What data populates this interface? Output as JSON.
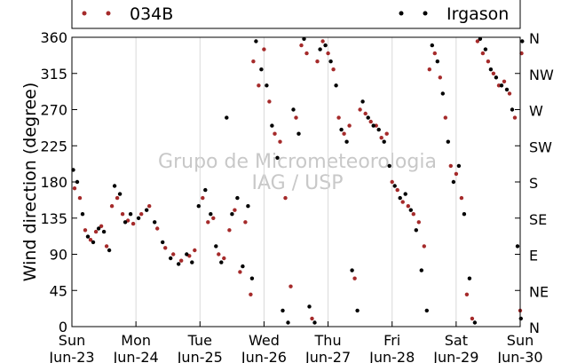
{
  "chart_data": {
    "type": "scatter",
    "ylabel": "Wind direction (degree)",
    "ylim": [
      0,
      360
    ],
    "yticks": [
      0,
      45,
      90,
      135,
      180,
      225,
      270,
      315,
      360
    ],
    "compass_ticks": [
      {
        "value": 0,
        "label": "N"
      },
      {
        "value": 45,
        "label": "NE"
      },
      {
        "value": 90,
        "label": "E"
      },
      {
        "value": 135,
        "label": "SE"
      },
      {
        "value": 180,
        "label": "S"
      },
      {
        "value": 225,
        "label": "SW"
      },
      {
        "value": 270,
        "label": "W"
      },
      {
        "value": 315,
        "label": "NW"
      },
      {
        "value": 360,
        "label": "N"
      }
    ],
    "xlim": [
      "2013-06-23",
      "2013-06-30"
    ],
    "xticks": [
      {
        "day": "Sun",
        "date": "Jun-23"
      },
      {
        "day": "Mon",
        "date": "Jun-24"
      },
      {
        "day": "Tue",
        "date": "Jun-25"
      },
      {
        "day": "Wed",
        "date": "Jun-26"
      },
      {
        "day": "Thu",
        "date": "Jun-27"
      },
      {
        "day": "Fri",
        "date": "Jun-28"
      },
      {
        "day": "Sat",
        "date": "Jun-29"
      },
      {
        "day": "Sun",
        "date": "Jun-30"
      }
    ],
    "grid": "vertical",
    "legend_placement": "top",
    "watermark": [
      "Grupo de Micrometeorologia",
      "IAG / USP"
    ],
    "series": [
      {
        "name": "034B",
        "color": "#a52a2a",
        "points": [
          [
            "2013-06-23 01:00",
            172
          ],
          [
            "2013-06-23 03:00",
            160
          ],
          [
            "2013-06-23 05:00",
            120
          ],
          [
            "2013-06-23 07:00",
            108
          ],
          [
            "2013-06-23 09:00",
            118
          ],
          [
            "2013-06-23 11:00",
            125
          ],
          [
            "2013-06-23 13:00",
            100
          ],
          [
            "2013-06-23 15:00",
            150
          ],
          [
            "2013-06-23 17:00",
            160
          ],
          [
            "2013-06-23 19:00",
            140
          ],
          [
            "2013-06-23 21:00",
            132
          ],
          [
            "2013-06-23 23:00",
            128
          ],
          [
            "2013-06-24 02:00",
            140
          ],
          [
            "2013-06-24 05:00",
            150
          ],
          [
            "2013-06-24 08:00",
            122
          ],
          [
            "2013-06-24 11:00",
            98
          ],
          [
            "2013-06-24 14:00",
            90
          ],
          [
            "2013-06-24 17:00",
            82
          ],
          [
            "2013-06-24 20:00",
            88
          ],
          [
            "2013-06-24 22:00",
            95
          ],
          [
            "2013-06-25 01:00",
            160
          ],
          [
            "2013-06-25 03:00",
            130
          ],
          [
            "2013-06-25 05:00",
            135
          ],
          [
            "2013-06-25 07:00",
            90
          ],
          [
            "2013-06-25 09:00",
            85
          ],
          [
            "2013-06-25 11:00",
            120
          ],
          [
            "2013-06-25 13:00",
            145
          ],
          [
            "2013-06-25 15:00",
            68
          ],
          [
            "2013-06-25 17:00",
            130
          ],
          [
            "2013-06-25 19:00",
            40
          ],
          [
            "2013-06-25 20:00",
            330
          ],
          [
            "2013-06-25 22:00",
            300
          ],
          [
            "2013-06-26 00:00",
            345
          ],
          [
            "2013-06-26 02:00",
            280
          ],
          [
            "2013-06-26 04:00",
            240
          ],
          [
            "2013-06-26 06:00",
            230
          ],
          [
            "2013-06-26 08:00",
            160
          ],
          [
            "2013-06-26 10:00",
            50
          ],
          [
            "2013-06-26 12:00",
            260
          ],
          [
            "2013-06-26 14:00",
            350
          ],
          [
            "2013-06-26 16:00",
            340
          ],
          [
            "2013-06-26 18:00",
            10
          ],
          [
            "2013-06-26 20:00",
            330
          ],
          [
            "2013-06-26 22:00",
            355
          ],
          [
            "2013-06-27 00:00",
            340
          ],
          [
            "2013-06-27 02:00",
            320
          ],
          [
            "2013-06-27 04:00",
            260
          ],
          [
            "2013-06-27 06:00",
            240
          ],
          [
            "2013-06-27 08:00",
            250
          ],
          [
            "2013-06-27 10:00",
            60
          ],
          [
            "2013-06-27 12:00",
            270
          ],
          [
            "2013-06-27 14:00",
            265
          ],
          [
            "2013-06-27 16:00",
            255
          ],
          [
            "2013-06-27 18:00",
            250
          ],
          [
            "2013-06-27 20:00",
            235
          ],
          [
            "2013-06-27 22:00",
            240
          ],
          [
            "2013-06-28 00:00",
            180
          ],
          [
            "2013-06-28 02:00",
            170
          ],
          [
            "2013-06-28 04:00",
            155
          ],
          [
            "2013-06-28 06:00",
            150
          ],
          [
            "2013-06-28 08:00",
            140
          ],
          [
            "2013-06-28 10:00",
            130
          ],
          [
            "2013-06-28 12:00",
            100
          ],
          [
            "2013-06-28 14:00",
            320
          ],
          [
            "2013-06-28 16:00",
            340
          ],
          [
            "2013-06-28 18:00",
            310
          ],
          [
            "2013-06-28 20:00",
            260
          ],
          [
            "2013-06-28 22:00",
            200
          ],
          [
            "2013-06-29 00:00",
            190
          ],
          [
            "2013-06-29 02:00",
            160
          ],
          [
            "2013-06-29 04:00",
            40
          ],
          [
            "2013-06-29 06:00",
            10
          ],
          [
            "2013-06-29 08:00",
            355
          ],
          [
            "2013-06-29 10:00",
            340
          ],
          [
            "2013-06-29 12:00",
            330
          ],
          [
            "2013-06-29 14:00",
            315
          ],
          [
            "2013-06-29 16:00",
            300
          ],
          [
            "2013-06-29 18:00",
            305
          ],
          [
            "2013-06-29 20:00",
            290
          ],
          [
            "2013-06-29 22:00",
            260
          ],
          [
            "2013-06-30 00:00",
            20
          ],
          [
            "2013-06-30 00:30",
            340
          ]
        ]
      },
      {
        "name": "Irgason",
        "color": "#000000",
        "points": [
          [
            "2013-06-23 00:30",
            195
          ],
          [
            "2013-06-23 02:00",
            180
          ],
          [
            "2013-06-23 04:00",
            140
          ],
          [
            "2013-06-23 06:00",
            112
          ],
          [
            "2013-06-23 08:00",
            105
          ],
          [
            "2013-06-23 10:00",
            122
          ],
          [
            "2013-06-23 12:00",
            118
          ],
          [
            "2013-06-23 14:00",
            95
          ],
          [
            "2013-06-23 16:00",
            175
          ],
          [
            "2013-06-23 18:00",
            165
          ],
          [
            "2013-06-23 20:00",
            130
          ],
          [
            "2013-06-23 22:00",
            140
          ],
          [
            "2013-06-24 01:00",
            135
          ],
          [
            "2013-06-24 04:00",
            145
          ],
          [
            "2013-06-24 07:00",
            130
          ],
          [
            "2013-06-24 10:00",
            105
          ],
          [
            "2013-06-24 13:00",
            85
          ],
          [
            "2013-06-24 16:00",
            78
          ],
          [
            "2013-06-24 19:00",
            90
          ],
          [
            "2013-06-24 21:00",
            80
          ],
          [
            "2013-06-24 23:30",
            150
          ],
          [
            "2013-06-25 02:00",
            170
          ],
          [
            "2013-06-25 04:00",
            140
          ],
          [
            "2013-06-25 06:00",
            100
          ],
          [
            "2013-06-25 08:00",
            80
          ],
          [
            "2013-06-25 10:00",
            260
          ],
          [
            "2013-06-25 12:00",
            140
          ],
          [
            "2013-06-25 14:00",
            160
          ],
          [
            "2013-06-25 16:00",
            75
          ],
          [
            "2013-06-25 18:00",
            150
          ],
          [
            "2013-06-25 19:30",
            60
          ],
          [
            "2013-06-25 21:00",
            355
          ],
          [
            "2013-06-25 23:00",
            320
          ],
          [
            "2013-06-26 01:00",
            300
          ],
          [
            "2013-06-26 03:00",
            250
          ],
          [
            "2013-06-26 05:00",
            210
          ],
          [
            "2013-06-26 07:00",
            20
          ],
          [
            "2013-06-26 09:00",
            5
          ],
          [
            "2013-06-26 11:00",
            270
          ],
          [
            "2013-06-26 13:00",
            240
          ],
          [
            "2013-06-26 15:00",
            358
          ],
          [
            "2013-06-26 17:00",
            25
          ],
          [
            "2013-06-26 19:00",
            5
          ],
          [
            "2013-06-26 21:00",
            345
          ],
          [
            "2013-06-26 23:00",
            350
          ],
          [
            "2013-06-27 01:00",
            330
          ],
          [
            "2013-06-27 03:00",
            300
          ],
          [
            "2013-06-27 05:00",
            245
          ],
          [
            "2013-06-27 07:00",
            230
          ],
          [
            "2013-06-27 09:00",
            70
          ],
          [
            "2013-06-27 11:00",
            20
          ],
          [
            "2013-06-27 13:00",
            280
          ],
          [
            "2013-06-27 15:00",
            260
          ],
          [
            "2013-06-27 17:00",
            250
          ],
          [
            "2013-06-27 19:00",
            245
          ],
          [
            "2013-06-27 21:00",
            230
          ],
          [
            "2013-06-27 23:00",
            200
          ],
          [
            "2013-06-28 01:00",
            175
          ],
          [
            "2013-06-28 03:00",
            160
          ],
          [
            "2013-06-28 05:00",
            165
          ],
          [
            "2013-06-28 07:00",
            145
          ],
          [
            "2013-06-28 09:00",
            120
          ],
          [
            "2013-06-28 11:00",
            70
          ],
          [
            "2013-06-28 13:00",
            20
          ],
          [
            "2013-06-28 15:00",
            350
          ],
          [
            "2013-06-28 17:00",
            330
          ],
          [
            "2013-06-28 19:00",
            290
          ],
          [
            "2013-06-28 21:00",
            230
          ],
          [
            "2013-06-28 23:00",
            180
          ],
          [
            "2013-06-29 01:00",
            200
          ],
          [
            "2013-06-29 03:00",
            140
          ],
          [
            "2013-06-29 05:00",
            60
          ],
          [
            "2013-06-29 07:00",
            5
          ],
          [
            "2013-06-29 09:00",
            358
          ],
          [
            "2013-06-29 11:00",
            345
          ],
          [
            "2013-06-29 13:00",
            320
          ],
          [
            "2013-06-29 15:00",
            310
          ],
          [
            "2013-06-29 17:00",
            300
          ],
          [
            "2013-06-29 19:00",
            295
          ],
          [
            "2013-06-29 21:00",
            270
          ],
          [
            "2013-06-29 23:00",
            100
          ],
          [
            "2013-06-30 00:15",
            10
          ],
          [
            "2013-06-30 00:45",
            355
          ]
        ]
      }
    ]
  }
}
